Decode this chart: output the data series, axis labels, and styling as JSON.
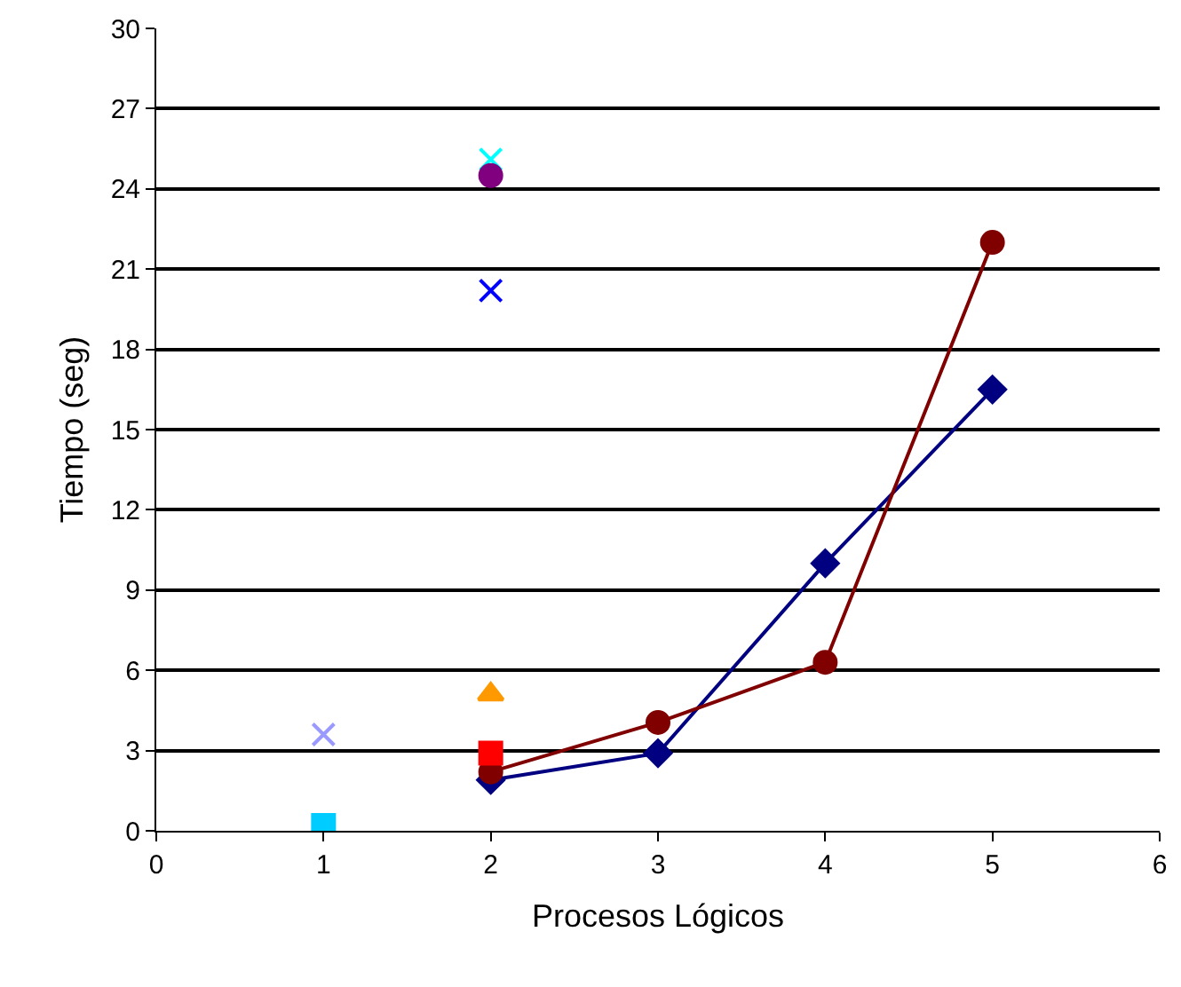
{
  "chart_data": {
    "type": "line",
    "xlabel": "Procesos Lógicos",
    "ylabel": "Tiempo (seg)",
    "xlim": [
      0,
      6
    ],
    "xticks": [
      0,
      1,
      2,
      3,
      4,
      5,
      6
    ],
    "ylim": [
      0,
      30
    ],
    "yticks": [
      0,
      3,
      6,
      9,
      12,
      15,
      18,
      21,
      24,
      27,
      30
    ],
    "grid": "y",
    "line_style": "solid",
    "series": [
      {
        "color": "#000080",
        "marker": "diamond",
        "x": [
          2,
          3,
          4,
          5
        ],
        "values": [
          1.9,
          2.9,
          10.0,
          16.5
        ]
      },
      {
        "color": "#800000",
        "marker": "circle",
        "x": [
          2,
          3,
          4,
          5
        ],
        "values": [
          2.2,
          4.05,
          6.3,
          22.0
        ]
      },
      {
        "type": "scatter",
        "color": "#9999ff",
        "marker": "cross",
        "x": [
          1
        ],
        "values": [
          3.6
        ]
      },
      {
        "type": "scatter",
        "color": "#00ccff",
        "marker": "square",
        "x": [
          1
        ],
        "values": [
          0.2
        ]
      },
      {
        "type": "scatter",
        "color": "#ff9900",
        "marker": "triangle",
        "x": [
          2
        ],
        "values": [
          5.1
        ]
      },
      {
        "type": "scatter",
        "color": "#ff0000",
        "marker": "square",
        "x": [
          2
        ],
        "values": [
          2.9
        ]
      },
      {
        "type": "scatter",
        "color": "#00ffff",
        "marker": "cross",
        "x": [
          2
        ],
        "values": [
          25.1
        ]
      },
      {
        "type": "scatter",
        "color": "#800080",
        "marker": "circle",
        "x": [
          2
        ],
        "values": [
          24.5
        ]
      },
      {
        "type": "scatter",
        "color": "#0000ff",
        "marker": "cross",
        "x": [
          2
        ],
        "values": [
          20.2
        ]
      }
    ]
  }
}
